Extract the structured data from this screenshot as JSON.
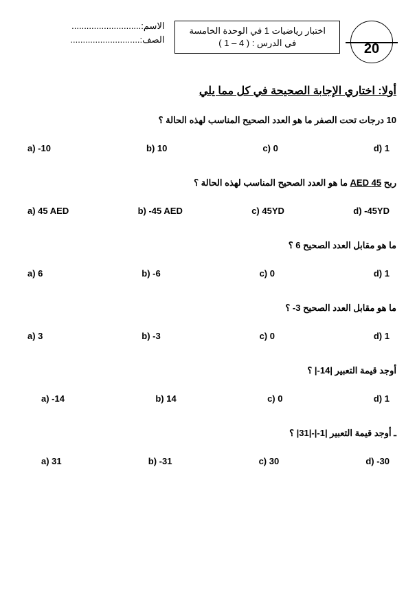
{
  "header": {
    "score": "20",
    "title_line1": "اختبار رياضيات 1 في الوحدة الخامسة",
    "title_line2": "في الدرس : ( 4 – 1 )",
    "name_label": "الاسم:",
    "class_label": "الصف:",
    "dots": "............................"
  },
  "section_title": "أولا: اختاري الإجابة الصحيحة في كل مما يلي",
  "questions": [
    {
      "text": "10 درجات تحت الصفر ما هو العدد الصحيح المناسب لهذه الحالة ؟",
      "options": {
        "a": "a) -10",
        "b": "b) 10",
        "c": "c) 0",
        "d": "d) 1"
      }
    },
    {
      "text_prefix": "ربح ",
      "text_underline": "45 AED",
      "text_suffix": " ما هو العدد الصحيح المناسب لهذه الحالة ؟",
      "options": {
        "a": "a) 45 AED",
        "b": "b) -45 AED",
        "c": "c) 45YD",
        "d": "d) -45YD"
      }
    },
    {
      "text": "ما هو مقابل العدد الصحيح  6  ؟",
      "options": {
        "a": "a) 6",
        "b": "b) -6",
        "c": "c) 0",
        "d": "d) 1"
      }
    },
    {
      "text": "ما هو مقابل العدد الصحيح  3-  ؟",
      "options": {
        "a": "a) 3",
        "b": "b) -3",
        "c": "c) 0",
        "d": "d) 1"
      }
    },
    {
      "text": "أوجد قيمة التعبير  |14-|  ؟",
      "options": {
        "a": "a) -14",
        "b": "b) 14",
        "c": "c) 0",
        "d": "d)  1"
      }
    },
    {
      "text": "ـ أوجد قيمة التعبير  |1-|-|31|  ؟",
      "options": {
        "a": "a) 31",
        "b": "b) -31",
        "c": "c) 30",
        "d": "d) -30"
      }
    }
  ]
}
